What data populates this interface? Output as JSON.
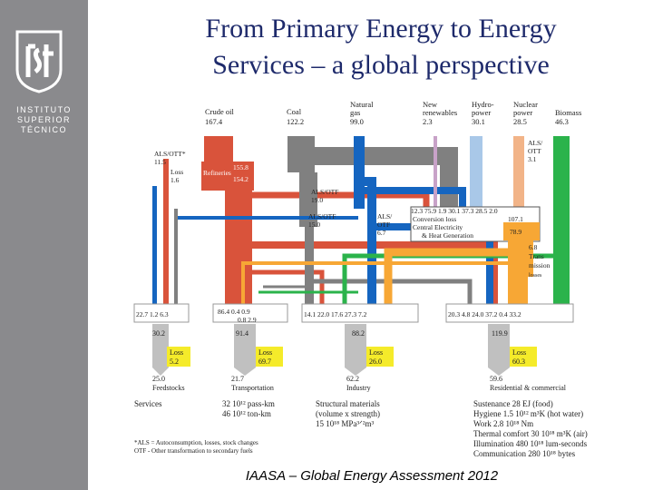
{
  "institution": {
    "line1": "INSTITUTO",
    "line2": "SUPERIOR",
    "line3": "TÉCNICO"
  },
  "slide": {
    "title_line1": "From Primary Energy to Energy",
    "title_line2": "Services – a global perspective",
    "footer": "IAASA – Global Energy Assessment 2012"
  },
  "diagram": {
    "sources": [
      {
        "name": "Crude oil",
        "value": "167.4"
      },
      {
        "name": "Coal",
        "value": "122.2"
      },
      {
        "name": "Natural",
        "name2": "gas",
        "value": "99.0"
      },
      {
        "name": "New",
        "name2": "renewables",
        "value": "2.3"
      },
      {
        "name": "Hydro-",
        "name2": "power",
        "value": "30.1"
      },
      {
        "name": "Nuclear",
        "name2": "power",
        "value": "28.5"
      },
      {
        "name": "Biomass",
        "value": "46.3"
      }
    ],
    "labels": {
      "als_otta": "ALS/OTT*",
      "als_otta_val": "11.5",
      "loss": "Loss",
      "loss_val": "1.6",
      "refineries": "Refineries",
      "ref_in": "155.8",
      "ref_out": "154.2",
      "als_otf_a": "ALS/OTF",
      "als_otf_a_val": "19.0",
      "als_otf_b": "ALS/OTF",
      "als_otf_b_val": "15.0",
      "als_otf_c1": "ALS/",
      "als_otf_c2": "OTF",
      "als_otf_c_val": "6.7",
      "als_right1": "ALS/",
      "als_right2": "OTT",
      "als_right_val": "3.1",
      "ce_row": "12.3   75.9  1.9 30.1  37.3  28.5 2.0",
      "conversion_loss": "Conversion loss",
      "conversion_loss_val": "107.1",
      "central_el1": "Central Electricity",
      "central_el2": "& Heat Generation",
      "central_el_val": "78.9",
      "trans_val": "6.8",
      "trans1": "Trans",
      "trans2": "mission",
      "trans3": "losses"
    },
    "sector_inputs": {
      "feedstocks": "22.7  1.2   6.3",
      "transport_top": "86.4      0.4    0.9",
      "transport_bottom": "0.8    2.9",
      "industry": "14.1    22.0   17.6    27.3   7.2",
      "residential": "20.3   4.8   24.0    37.2  0.4   33.2"
    },
    "sectors": [
      {
        "total": "30.2",
        "loss_label": "Loss",
        "loss": "5.2",
        "useful": "25.0",
        "name": "Feedstocks"
      },
      {
        "total": "91.4",
        "loss_label": "Loss",
        "loss": "69.7",
        "useful": "21.7",
        "name": "Transportation"
      },
      {
        "total": "88.2",
        "loss_label": "Loss",
        "loss": "26.0",
        "useful": "62.2",
        "name": "Industry"
      },
      {
        "total": "119.9",
        "loss_label": "Loss",
        "loss": "60.3",
        "useful": "59.6",
        "name": "Residential & commercial"
      }
    ],
    "services": {
      "heading": "Services",
      "transport_line1": "32 10¹² pass-km",
      "transport_line2": "46 10¹² ton-km",
      "industry_line1": "Structural materials",
      "industry_line2": "(volume x strength)",
      "industry_line3": "15 10¹⁸ MPa³ᐟ²m³",
      "res_lines": [
        "Sustenance 28 EJ (food)",
        "Hygiene 1.5 10¹² m³K (hot water)",
        "Work 2.8 10¹⁸ Nm",
        "Thermal comfort 30 10¹⁸ m³K (air)",
        "Illumination 480 10¹⁸ lum-seconds",
        "Communication 280 10¹⁸ bytes"
      ]
    },
    "footnotes": [
      "*ALS = Autoconsumption, losses, stock changes",
      " OTF - Other transformation to secondary fuels"
    ],
    "colors": {
      "oil": "#d9533b",
      "coal": "#808080",
      "gas": "#1565c0",
      "renew": "#c8a2c8",
      "hydro": "#a9c8e8",
      "nuclear": "#f2b488",
      "biomass": "#2bb34b",
      "electricity": "#f7a735",
      "loss": "#f5eb2a",
      "title": "#1e2a6b"
    }
  }
}
